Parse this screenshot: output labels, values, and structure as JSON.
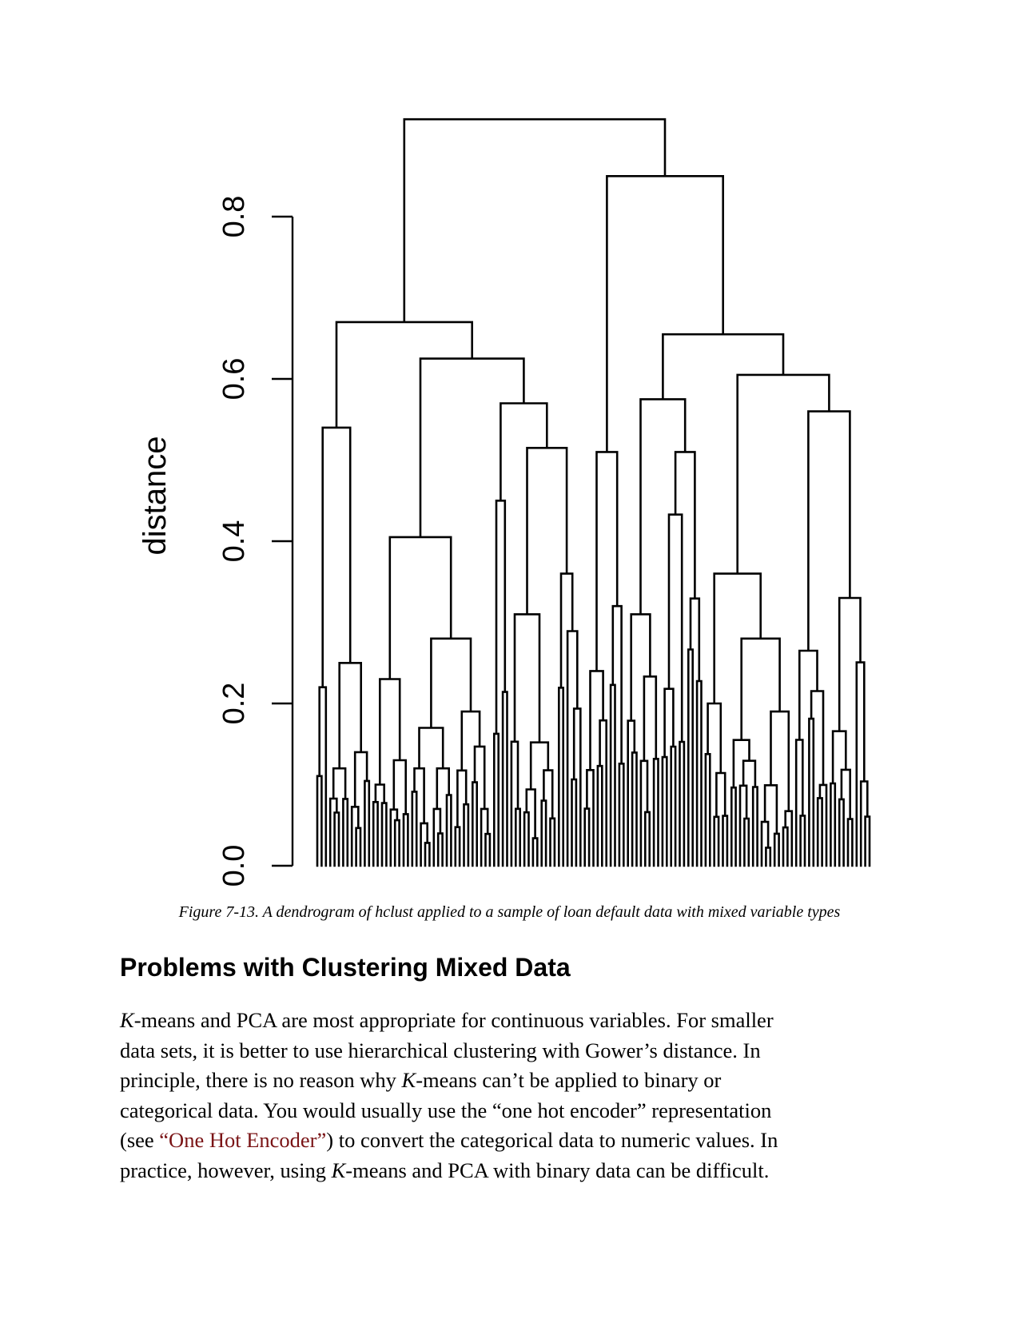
{
  "chart_data": {
    "type": "dendrogram",
    "ylabel": "distance",
    "ylim": [
      0,
      0.92
    ],
    "yticks": [
      0.0,
      0.2,
      0.4,
      0.6,
      0.8
    ],
    "ytick_labels": [
      "0.0",
      "0.2",
      "0.4",
      "0.6",
      "0.8"
    ],
    "grid": false,
    "legend": "none",
    "line_color": "#000000",
    "tree": {
      "h": 0.92,
      "c": [
        {
          "h": 0.67,
          "c": [
            {
              "h": 0.54,
              "c": [
                {
                  "h": 0.22,
                  "l": 3
                },
                {
                  "h": 0.25,
                  "c": [
                    {
                      "h": 0.12,
                      "l": 5
                    },
                    {
                      "h": 0.14,
                      "l": 5
                    }
                  ]
                }
              ]
            },
            {
              "h": 0.625,
              "c": [
                {
                  "h": 0.405,
                  "c": [
                    {
                      "h": 0.23,
                      "c": [
                        {
                          "h": 0.1,
                          "l": 4
                        },
                        {
                          "h": 0.13,
                          "l": 5
                        }
                      ]
                    },
                    {
                      "h": 0.28,
                      "c": [
                        {
                          "h": 0.17,
                          "c": [
                            {
                              "h": 0.12,
                              "l": 5
                            },
                            {
                              "h": 0.12,
                              "l": 5
                            }
                          ]
                        },
                        {
                          "h": 0.19,
                          "l": 9
                        }
                      ]
                    }
                  ]
                },
                {
                  "h": 0.57,
                  "c": [
                    {
                      "h": 0.45,
                      "l": 4
                    },
                    {
                      "h": 0.515,
                      "c": [
                        {
                          "h": 0.31,
                          "l": 11
                        },
                        {
                          "h": 0.36,
                          "l": 6
                        }
                      ]
                    }
                  ]
                }
              ]
            }
          ]
        },
        {
          "h": 0.85,
          "c": [
            {
              "h": 0.51,
              "c": [
                {
                  "h": 0.24,
                  "l": 6
                },
                {
                  "h": 0.32,
                  "l": 4
                }
              ]
            },
            {
              "h": 0.655,
              "c": [
                {
                  "h": 0.575,
                  "c": [
                    {
                      "h": 0.31,
                      "l": 8
                    },
                    {
                      "h": 0.51,
                      "l": 10
                    }
                  ]
                },
                {
                  "h": 0.605,
                  "c": [
                    {
                      "h": 0.36,
                      "c": [
                        {
                          "h": 0.2,
                          "l": 6
                        },
                        {
                          "h": 0.28,
                          "c": [
                            {
                              "h": 0.155,
                              "l": 7
                            },
                            {
                              "h": 0.19,
                              "l": 8
                            }
                          ]
                        }
                      ]
                    },
                    {
                      "h": 0.56,
                      "c": [
                        {
                          "h": 0.265,
                          "l": 8
                        },
                        {
                          "h": 0.33,
                          "l": 10
                        }
                      ]
                    }
                  ]
                }
              ]
            }
          ]
        }
      ]
    }
  },
  "caption": "Figure 7-13. A dendrogram of hclust applied to a sample of loan default data with mixed variable types",
  "section_heading": "Problems with Clustering Mixed Data",
  "paragraph": {
    "l1_k": "K",
    "l1_rest": "-means and PCA are most appropriate for continuous variables. For smaller",
    "l2": "data sets, it is better to use hierarchical clustering with Gower’s distance. In",
    "l3_a": "principle, there is no reason why ",
    "l3_k": "K",
    "l3_b": "-means can’t be applied to binary or",
    "l4": "categorical data. You would usually use the “one hot encoder” representation",
    "l5_a": "(see ",
    "l5_link": "“One Hot Encoder”",
    "l5_b": ") to convert the categorical data to numeric values. In",
    "l6_a": "practice, however, using ",
    "l6_k": "K",
    "l6_b": "-means and PCA with binary data can be difficult."
  }
}
